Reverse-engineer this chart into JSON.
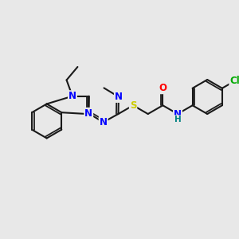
{
  "bg": "#e8e8e8",
  "bond_color": "#1a1a1a",
  "lw": 1.5,
  "BL": 22,
  "atom_colors": {
    "N": "#0000ff",
    "O": "#ff0000",
    "S": "#cccc00",
    "Cl": "#00aa00",
    "NH_color": "#008080"
  },
  "fs": 8.5
}
